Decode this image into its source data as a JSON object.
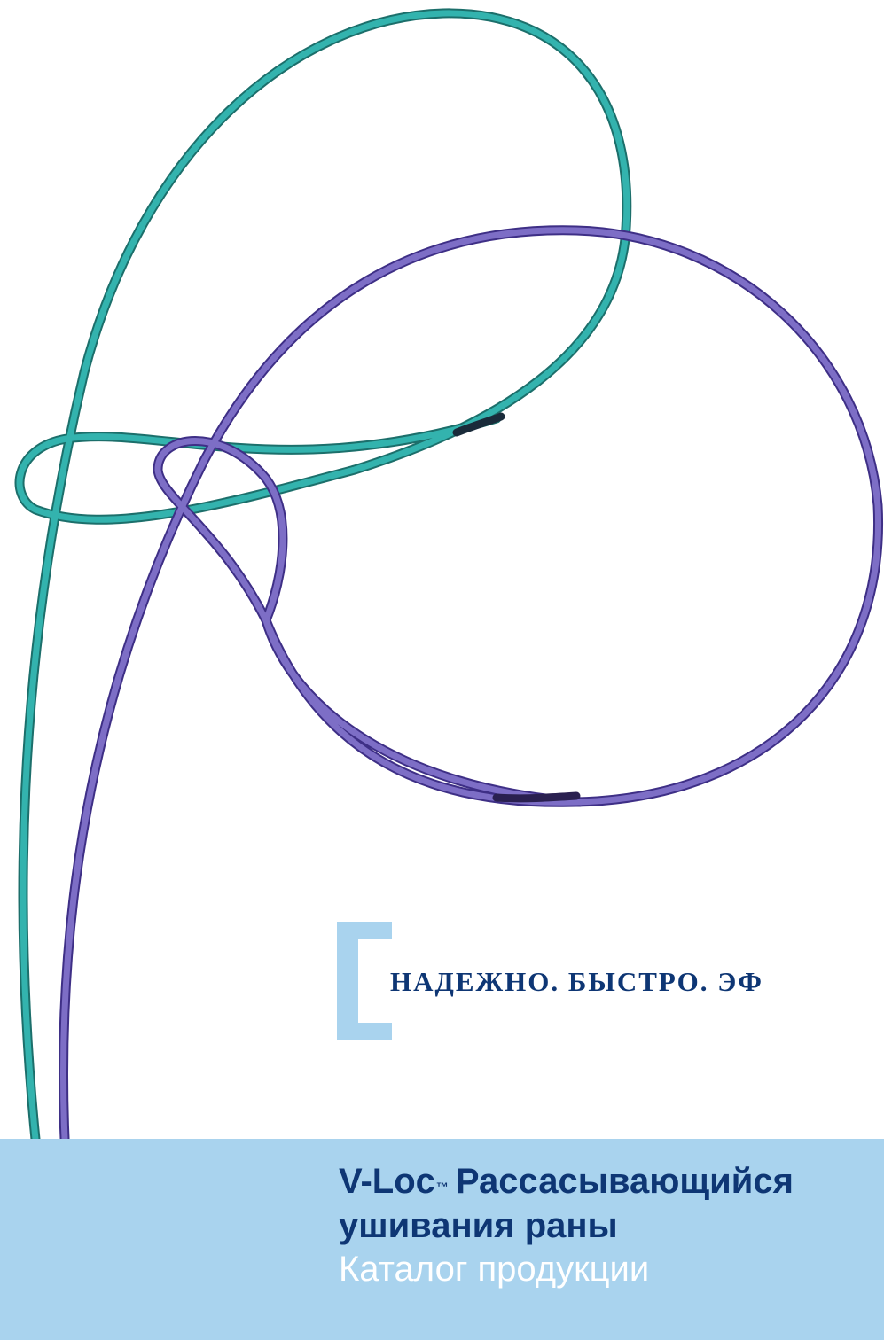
{
  "tagline": "НАДЕЖНО. БЫСТРО. ЭФ",
  "title": {
    "brand": "V-Loc",
    "trademark": "™",
    "line1_rest": "Рассасывающийся",
    "line2": "ушивания раны"
  },
  "subtitle": "Каталог продукции",
  "colors": {
    "band": "#a9d3ee",
    "navy": "#0e3674",
    "teal_suture": "#2aa6a2",
    "purple_suture": "#6e5fb8"
  }
}
